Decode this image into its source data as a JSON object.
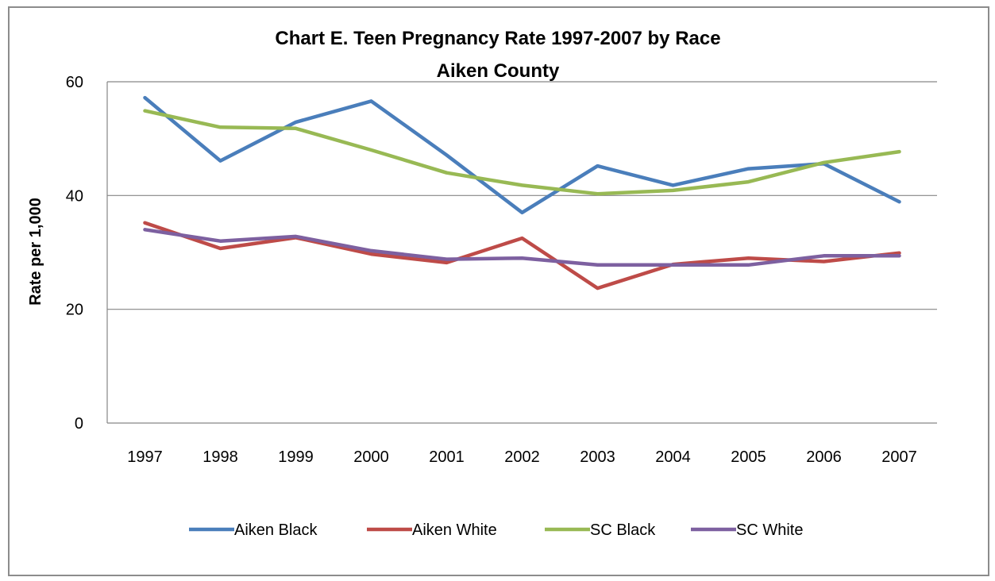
{
  "chart_data": {
    "type": "line",
    "title": "Chart E. Teen Pregnancy Rate 1997-2007 by Race",
    "subtitle": "Aiken County",
    "xlabel": "",
    "ylabel": "Rate per 1,000",
    "ylim": [
      0,
      60
    ],
    "yticks": [
      0,
      20,
      40,
      60
    ],
    "grid": true,
    "legend_position": "bottom",
    "categories": [
      "1997",
      "1998",
      "1999",
      "2000",
      "2001",
      "2002",
      "2003",
      "2004",
      "2005",
      "2006",
      "2007"
    ],
    "series": [
      {
        "name": "Aiken  Black",
        "color": "#4a7ebb",
        "values": [
          57.2,
          46.1,
          52.9,
          56.6,
          47.1,
          37.0,
          45.2,
          41.8,
          44.7,
          45.6,
          38.9
        ]
      },
      {
        "name": "Aiken  White",
        "color": "#be4b48",
        "values": [
          35.2,
          30.7,
          32.6,
          29.7,
          28.2,
          32.5,
          23.7,
          27.9,
          29.0,
          28.4,
          29.9
        ]
      },
      {
        "name": "SC Black",
        "color": "#98b954",
        "values": [
          54.9,
          52.0,
          51.8,
          48.0,
          44.0,
          41.8,
          40.3,
          40.9,
          42.4,
          45.8,
          47.7
        ]
      },
      {
        "name": "SC White",
        "color": "#7d60a0",
        "values": [
          34.0,
          32.0,
          32.8,
          30.3,
          28.8,
          29.0,
          27.8,
          27.8,
          27.8,
          29.4,
          29.4
        ]
      }
    ]
  }
}
